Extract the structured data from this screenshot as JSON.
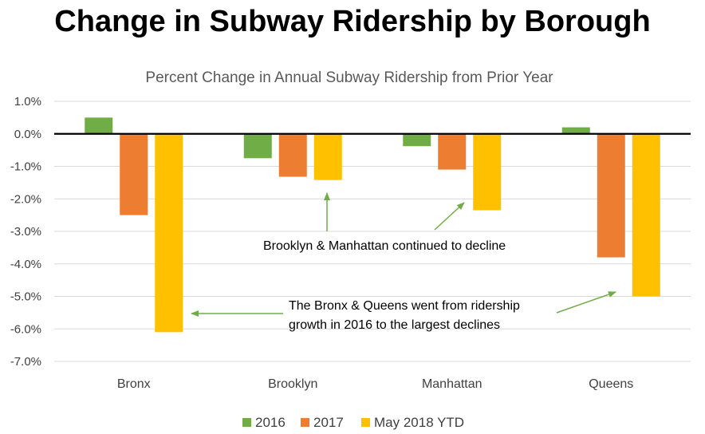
{
  "title": "Change in Subway Ridership by Borough",
  "chart_data": {
    "type": "bar",
    "title": "Percent Change in Annual Subway Ridership from Prior Year",
    "categories": [
      "Bronx",
      "Brooklyn",
      "Manhattan",
      "Queens"
    ],
    "series": [
      {
        "name": "2016",
        "color": "#70AD47",
        "values": [
          0.5,
          -0.75,
          -0.38,
          0.2
        ]
      },
      {
        "name": "2017",
        "color": "#ED7D31",
        "values": [
          -2.5,
          -1.32,
          -1.1,
          -3.8
        ]
      },
      {
        "name": "May 2018 YTD",
        "color": "#FFC000",
        "values": [
          -6.1,
          -1.42,
          -2.35,
          -5.0
        ]
      }
    ],
    "ylim": [
      -7.0,
      1.0
    ],
    "yticks": [
      "1.0%",
      "0.0%",
      "-1.0%",
      "-2.0%",
      "-3.0%",
      "-4.0%",
      "-5.0%",
      "-6.0%",
      "-7.0%"
    ],
    "grid": true,
    "legend": "bottom",
    "annotations": [
      {
        "lines": [
          "Brooklyn & Manhattan continued to decline"
        ]
      },
      {
        "lines": [
          "The Bronx & Queens went from ridership",
          "growth in 2016 to the largest declines"
        ]
      }
    ]
  }
}
